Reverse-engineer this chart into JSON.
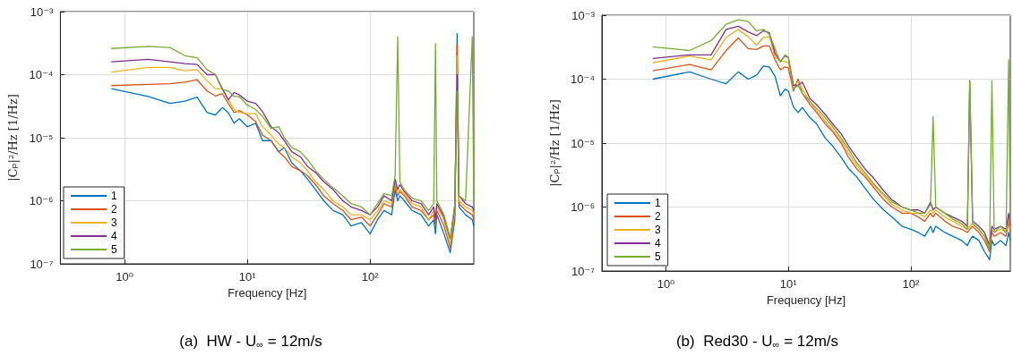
{
  "chart_data": [
    {
      "type": "line",
      "title": "(a)  HW - U$_{∞}$ = 12m/s",
      "xlabel": "Frequency [Hz]",
      "ylabel": "|C$_{P}$|²/Hz [1/Hz]",
      "log": "xy",
      "grid": true,
      "legend": "bottom left",
      "xlim": [
        0.3,
        700
      ],
      "ylim": [
        1e-07,
        0.001
      ],
      "xticks": [
        {
          "value": 1,
          "label": "10⁰"
        },
        {
          "value": 10,
          "label": "10¹"
        },
        {
          "value": 100,
          "label": "10²"
        }
      ],
      "yticks": [
        {
          "value": 1e-07,
          "label": "10⁻⁷"
        },
        {
          "value": 1e-06,
          "label": "10⁻⁶"
        },
        {
          "value": 1e-05,
          "label": "10⁻⁵"
        },
        {
          "value": 0.0001,
          "label": "10⁻⁴"
        },
        {
          "value": 0.001,
          "label": "10⁻³"
        }
      ],
      "x": [
        0.78,
        1.56,
        2.34,
        3.1,
        3.9,
        4.7,
        5.5,
        6.25,
        7,
        7.8,
        8.6,
        10,
        11.7,
        13.3,
        15.6,
        18,
        20,
        23,
        27,
        31,
        36,
        42,
        50,
        60,
        70,
        85,
        100,
        115,
        130,
        150,
        160,
        168,
        175,
        190,
        220,
        260,
        300,
        330,
        341,
        350,
        400,
        450,
        490,
        512,
        530,
        600,
        680,
        700
      ],
      "series": [
        {
          "name": "1",
          "color": "#0072bd",
          "values": [
            6e-05,
            4.5e-05,
            3.5e-05,
            3.8e-05,
            4.4e-05,
            2.5e-05,
            2.3e-05,
            3e-05,
            2.5e-05,
            1.7e-05,
            2e-05,
            1.5e-05,
            1.7e-05,
            9e-06,
            9e-06,
            6e-06,
            7e-06,
            4e-06,
            3e-06,
            2.2e-06,
            1.5e-06,
            1e-06,
            7e-07,
            6e-07,
            4e-07,
            4.5e-07,
            3e-07,
            5e-07,
            7e-07,
            6e-07,
            1.5e-06,
            1e-06,
            1.2e-06,
            1e-06,
            7e-07,
            6e-07,
            4e-07,
            5e-07,
            3e-07,
            6e-07,
            3e-07,
            1.5e-07,
            5e-07,
            0.00045,
            8e-07,
            6e-07,
            5e-07,
            4e-07
          ]
        },
        {
          "name": "2",
          "color": "#d95319",
          "values": [
            6.7e-05,
            7e-05,
            7.2e-05,
            7.6e-05,
            8.3e-05,
            5.5e-05,
            4.6e-05,
            5e-05,
            3.5e-05,
            2.5e-05,
            2.7e-05,
            2.3e-05,
            1.8e-05,
            1.1e-05,
            9e-06,
            6e-06,
            5e-06,
            3.5e-06,
            3e-06,
            2.5e-06,
            1.8e-06,
            1.2e-06,
            9e-07,
            7e-07,
            5e-07,
            5.5e-07,
            4e-07,
            6e-07,
            9e-07,
            8e-07,
            1.8e-06,
            1.2e-06,
            1.4e-06,
            1.2e-06,
            8e-07,
            7e-07,
            5e-07,
            6e-07,
            4e-07,
            7e-07,
            4e-07,
            1.8e-07,
            6e-07,
            0.0003,
            9e-07,
            7e-07,
            6e-07,
            5e-07
          ]
        },
        {
          "name": "3",
          "color": "#edb120",
          "values": [
            0.00011,
            0.00013,
            0.00013,
            0.000115,
            0.00012,
            8e-05,
            6e-05,
            6e-05,
            4e-05,
            2.8e-05,
            2.5e-05,
            2.4e-05,
            2.4e-05,
            1.5e-05,
            1.1e-05,
            8e-06,
            7e-06,
            5e-06,
            4e-06,
            3e-06,
            2e-06,
            1.5e-06,
            1e-06,
            8e-07,
            6e-07,
            6e-07,
            5e-07,
            7e-07,
            1e-06,
            9e-07,
            2e-06,
            1.3e-06,
            1.5e-06,
            1.3e-06,
            9e-07,
            8e-07,
            5e-07,
            7e-07,
            5e-07,
            8e-07,
            5e-07,
            2e-07,
            7e-07,
            0.0002,
            1e-06,
            8e-07,
            7e-07,
            6e-07
          ]
        },
        {
          "name": "4",
          "color": "#7e2f8e",
          "values": [
            0.00016,
            0.000175,
            0.00016,
            0.00015,
            0.000145,
            0.0001,
            0.0001,
            6e-05,
            4e-05,
            5.2e-05,
            4.8e-05,
            3.8e-05,
            3.5e-05,
            2.6e-05,
            1.5e-05,
            1.2e-05,
            9e-06,
            6e-06,
            5e-06,
            3.5e-06,
            2.8e-06,
            2e-06,
            1.5e-06,
            1e-06,
            8e-07,
            7e-07,
            6e-07,
            8e-07,
            1.2e-06,
            1e-06,
            2.2e-06,
            1.5e-06,
            1.8e-06,
            1.4e-06,
            1e-06,
            9e-07,
            6e-07,
            8e-07,
            5e-07,
            9e-07,
            5.5e-07,
            2.5e-07,
            8e-07,
            0.0001,
            1.2e-06,
            9e-07,
            8e-07,
            7e-07
          ]
        },
        {
          "name": "5",
          "color": "#77ac30",
          "values": [
            0.00026,
            0.00028,
            0.00027,
            0.0002,
            0.000185,
            0.00012,
            0.0001,
            5.8e-05,
            5.5e-05,
            4.5e-05,
            4.5e-05,
            3.3e-05,
            2.8e-05,
            2.2e-05,
            1.4e-05,
            1.5e-05,
            1e-05,
            7e-06,
            6e-06,
            4.5e-06,
            3e-06,
            2.2e-06,
            1.6e-06,
            1.2e-06,
            9e-07,
            8e-07,
            6e-07,
            9e-07,
            1.3e-06,
            1.2e-06,
            2.5e-06,
            0.0004,
            2e-06,
            1.5e-06,
            1.1e-06,
            1e-06,
            7e-07,
            9e-07,
            0.00031,
            1e-06,
            6e-07,
            2.5e-07,
            9e-07,
            5.5e-05,
            1.2e-06,
            1e-06,
            0.0004,
            8e-07
          ]
        }
      ]
    },
    {
      "type": "line",
      "title": "(b)  Red30 - U$_{∞}$ = 12m/s",
      "xlabel": "Frequency [Hz]",
      "ylabel": "|C$_{P}$|²/Hz [1/Hz]",
      "log": "xy",
      "grid": true,
      "legend": "bottom left",
      "xlim": [
        0.3,
        650
      ],
      "ylim": [
        1e-07,
        0.001
      ],
      "xticks": [
        {
          "value": 1,
          "label": "10⁰"
        },
        {
          "value": 10,
          "label": "10¹"
        },
        {
          "value": 100,
          "label": "10²"
        }
      ],
      "yticks": [
        {
          "value": 1e-07,
          "label": "10⁻⁷"
        },
        {
          "value": 1e-06,
          "label": "10⁻⁶"
        },
        {
          "value": 1e-05,
          "label": "10⁻⁵"
        },
        {
          "value": 0.0001,
          "label": "10⁻⁴"
        },
        {
          "value": 0.001,
          "label": "10⁻³"
        }
      ],
      "x": [
        0.78,
        1.56,
        2.34,
        3.1,
        3.9,
        4.7,
        5.5,
        6.25,
        7,
        7.8,
        8.6,
        9.4,
        10,
        11,
        12,
        13,
        15,
        17,
        20,
        23,
        27,
        31,
        36,
        42,
        50,
        60,
        70,
        85,
        100,
        115,
        130,
        145,
        152,
        160,
        190,
        220,
        260,
        290,
        303,
        320,
        360,
        400,
        440,
        460,
        480,
        540,
        600,
        630,
        650
      ],
      "series": [
        {
          "name": "1",
          "color": "#0072bd",
          "values": [
            0.0001,
            0.00013,
            0.0001,
            8.5e-05,
            0.00013,
            0.0001,
            0.000115,
            0.00016,
            0.000155,
            0.00011,
            5.5e-05,
            7e-05,
            6.5e-05,
            3.7e-05,
            3e-05,
            3.6e-05,
            2.5e-05,
            2e-05,
            1.2e-05,
            9e-06,
            6e-06,
            4e-06,
            3e-06,
            2e-06,
            1.3e-06,
            9e-07,
            7e-07,
            5e-07,
            4.5e-07,
            4e-07,
            3.5e-07,
            5e-07,
            4e-07,
            5e-07,
            4e-07,
            3.5e-07,
            3e-07,
            2.5e-07,
            3e-07,
            3.5e-07,
            3e-07,
            2e-07,
            1.5e-07,
            3e-07,
            2.5e-07,
            3e-07,
            2.5e-07,
            4e-07,
            3e-07
          ]
        },
        {
          "name": "2",
          "color": "#d95319",
          "values": [
            0.000135,
            0.00017,
            0.00014,
            0.00028,
            0.00044,
            0.0003,
            0.00029,
            0.00033,
            0.00033,
            0.0002,
            0.00014,
            0.000155,
            0.00015,
            6.5e-05,
            0.0001,
            6e-05,
            4e-05,
            3e-05,
            2e-05,
            1.5e-05,
            1e-05,
            6e-06,
            4e-06,
            3e-06,
            2e-06,
            1.3e-06,
            1e-06,
            8e-07,
            8e-07,
            7e-07,
            6e-07,
            8e-07,
            7e-07,
            8e-07,
            6e-07,
            5e-07,
            4.5e-07,
            4e-07,
            4.5e-07,
            5e-07,
            4e-07,
            3e-07,
            2e-07,
            4e-07,
            3.5e-07,
            4e-07,
            3.5e-07,
            6e-07,
            4e-07
          ]
        },
        {
          "name": "3",
          "color": "#edb120",
          "values": [
            0.00018,
            0.00023,
            0.0002,
            0.00045,
            0.0006,
            0.00046,
            0.00034,
            0.00045,
            0.00046,
            0.00022,
            0.00019,
            0.00019,
            0.00018,
            8e-05,
            9e-05,
            7e-05,
            4.5e-05,
            3.2e-05,
            2.2e-05,
            1.6e-05,
            1.1e-05,
            7e-06,
            4.5e-06,
            3.2e-06,
            2.2e-06,
            1.5e-06,
            1.1e-06,
            9e-07,
            8e-07,
            8e-07,
            7e-07,
            9e-07,
            8e-07,
            9e-07,
            7e-07,
            6e-07,
            5e-07,
            4.5e-07,
            5e-07,
            5.5e-07,
            4.5e-07,
            3.5e-07,
            2.2e-07,
            4.5e-07,
            4e-07,
            4.5e-07,
            4e-07,
            7e-07,
            4.5e-07
          ]
        },
        {
          "name": "4",
          "color": "#7e2f8e",
          "values": [
            0.00021,
            0.00024,
            0.00024,
            0.0006,
            0.00067,
            0.00055,
            0.00048,
            0.00057,
            0.00053,
            0.00025,
            0.00019,
            0.00023,
            0.00022,
            8e-05,
            8e-05,
            9e-05,
            5e-05,
            4e-05,
            2.8e-05,
            2e-05,
            1.4e-05,
            9e-06,
            6e-06,
            4e-06,
            2.8e-06,
            1.8e-06,
            1.3e-06,
            1e-06,
            9e-07,
            9e-07,
            8e-07,
            1.2e-06,
            9e-07,
            1e-06,
            8e-07,
            7e-07,
            6e-07,
            5e-07,
            9.5e-05,
            6e-07,
            5e-07,
            4e-07,
            2.5e-07,
            5e-07,
            4.5e-07,
            5e-07,
            4.5e-07,
            8e-07,
            5e-07
          ]
        },
        {
          "name": "5",
          "color": "#77ac30",
          "values": [
            0.00032,
            0.00028,
            0.0004,
            0.00072,
            0.00085,
            0.0008,
            0.00057,
            0.0006,
            0.0005,
            0.0003,
            0.000185,
            0.00024,
            0.00022,
            7e-05,
            8e-05,
            6e-05,
            4.5e-05,
            3.5e-05,
            2.5e-05,
            1.8e-05,
            1.2e-05,
            8e-06,
            5e-06,
            3.5e-06,
            2.3e-06,
            1.6e-06,
            1.2e-06,
            1e-06,
            9e-07,
            8e-07,
            8e-07,
            1.1e-06,
            2.6e-05,
            1e-06,
            8e-07,
            6.5e-07,
            5.5e-07,
            4.5e-07,
            9e-05,
            5.5e-07,
            4.5e-07,
            3.5e-07,
            2.2e-07,
            9.5e-05,
            4e-07,
            5e-07,
            4e-07,
            0.0002,
            4.5e-07
          ]
        }
      ]
    }
  ]
}
